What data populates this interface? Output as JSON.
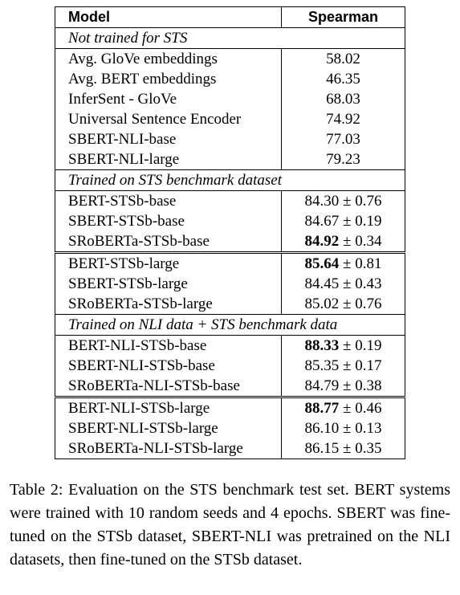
{
  "table": {
    "headers": [
      "Model",
      "Spearman"
    ],
    "sections": [
      {
        "title": "Not trained for STS",
        "groups": [
          [
            {
              "model": "Avg. GloVe embeddings",
              "score": "58.02",
              "bold": false,
              "std": ""
            },
            {
              "model": "Avg. BERT embeddings",
              "score": "46.35",
              "bold": false,
              "std": ""
            },
            {
              "model": "InferSent - GloVe",
              "score": "68.03",
              "bold": false,
              "std": ""
            },
            {
              "model": "Universal Sentence Encoder",
              "score": "74.92",
              "bold": false,
              "std": ""
            },
            {
              "model": "SBERT-NLI-base",
              "score": "77.03",
              "bold": false,
              "std": ""
            },
            {
              "model": "SBERT-NLI-large",
              "score": "79.23",
              "bold": false,
              "std": ""
            }
          ]
        ]
      },
      {
        "title": "Trained on STS benchmark dataset",
        "groups": [
          [
            {
              "model": "BERT-STSb-base",
              "score": "84.30",
              "bold": false,
              "std": "± 0.76"
            },
            {
              "model": "SBERT-STSb-base",
              "score": "84.67",
              "bold": false,
              "std": "± 0.19"
            },
            {
              "model": "SRoBERTa-STSb-base",
              "score": "84.92",
              "bold": true,
              "std": "± 0.34"
            }
          ],
          [
            {
              "model": "BERT-STSb-large",
              "score": "85.64",
              "bold": true,
              "std": "± 0.81"
            },
            {
              "model": "SBERT-STSb-large",
              "score": "84.45",
              "bold": false,
              "std": "± 0.43"
            },
            {
              "model": "SRoBERTa-STSb-large",
              "score": "85.02",
              "bold": false,
              "std": "± 0.76"
            }
          ]
        ]
      },
      {
        "title": "Trained on NLI data + STS benchmark data",
        "groups": [
          [
            {
              "model": "BERT-NLI-STSb-base",
              "score": "88.33",
              "bold": true,
              "std": "± 0.19"
            },
            {
              "model": "SBERT-NLI-STSb-base",
              "score": "85.35",
              "bold": false,
              "std": "± 0.17"
            },
            {
              "model": "SRoBERTa-NLI-STSb-base",
              "score": "84.79",
              "bold": false,
              "std": "± 0.38"
            }
          ],
          [
            {
              "model": "BERT-NLI-STSb-large",
              "score": "88.77",
              "bold": true,
              "std": "± 0.46"
            },
            {
              "model": "SBERT-NLI-STSb-large",
              "score": "86.10",
              "bold": false,
              "std": "± 0.13"
            },
            {
              "model": "SRoBERTa-NLI-STSb-large",
              "score": "86.15",
              "bold": false,
              "std": "± 0.35"
            }
          ]
        ]
      }
    ]
  },
  "caption": "Table 2: Evaluation on the STS benchmark test set. BERT systems were trained with 10 random seeds and 4 epochs. SBERT was fine-tuned on the STSb dataset, SBERT-NLI was pretrained on the NLI datasets, then fine-tuned on the STSb dataset."
}
